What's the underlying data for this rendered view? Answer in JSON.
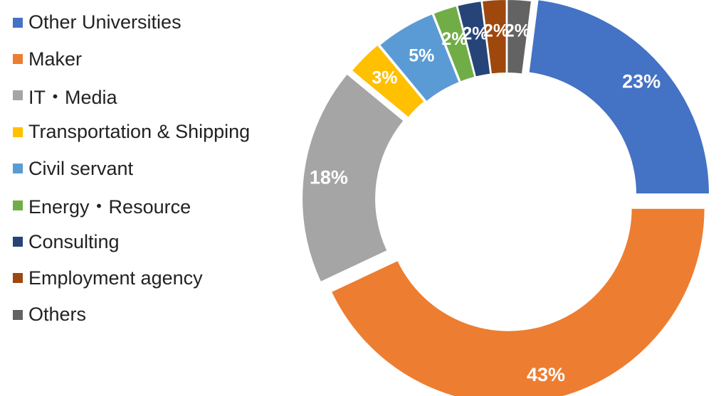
{
  "chart_data": {
    "type": "pie",
    "donut": true,
    "title": "",
    "legend_placement": "left",
    "categories": [
      "Other Universities",
      "Maker",
      "IT・Media",
      "Transportation & Shipping",
      "Civil servant",
      "Energy・Resource",
      "Consulting",
      "Employment agency",
      "Others"
    ],
    "values": [
      23,
      43,
      18,
      3,
      5,
      2,
      2,
      2,
      2
    ],
    "labels": [
      "23%",
      "43%",
      "18%",
      "3%",
      "5%",
      "2%",
      "2%",
      "2%",
      "2%"
    ],
    "colors": [
      "#4472C4",
      "#ED7D31",
      "#A5A5A5",
      "#FFC000",
      "#5B9BD5",
      "#70AD47",
      "#264478",
      "#9E480E",
      "#636363"
    ]
  }
}
